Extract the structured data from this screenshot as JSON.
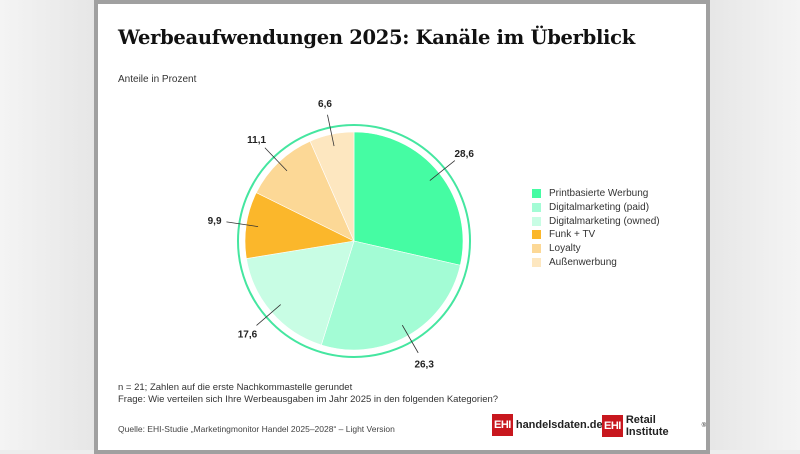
{
  "chart_data": {
    "type": "pie",
    "title": "Werbeaufwendungen 2025: Kanäle im Überblick",
    "subtitle": "Anteile in Prozent",
    "categories": [
      "Printbasierte Werbung",
      "Digitalmarketing (paid)",
      "Digitalmarketing (owned)",
      "Funk + TV",
      "Loyalty",
      "Außenwerbung"
    ],
    "values": [
      28.6,
      26.3,
      17.6,
      9.9,
      11.1,
      6.6
    ],
    "data_labels": [
      "28,6",
      "26,3",
      "17,6",
      "9,9",
      "11,1",
      "6,6"
    ],
    "colors": [
      "#45fca3",
      "#a3fcd5",
      "#c8fde4",
      "#fbb72b",
      "#fcd896",
      "#fde7c0"
    ],
    "ring_color": "#45e6a0",
    "legend_position": "right",
    "start": "top",
    "direction": "clockwise"
  },
  "notes": {
    "sample": "n = 21; Zahlen auf die erste Nachkommastelle gerundet",
    "question": "Frage: Wie verteilen sich Ihre Werbeausgaben im Jahr 2025 in den folgenden Kategorien?",
    "source": "Quelle: EHI-Studie „Marketingmonitor Handel 2025–2028“ – Light Version"
  },
  "logos": {
    "box": "EHI",
    "handelsdaten": "handelsdaten.de",
    "retail": "Retail Institute",
    "registered": "®",
    "brand_color": "#c8171e"
  }
}
